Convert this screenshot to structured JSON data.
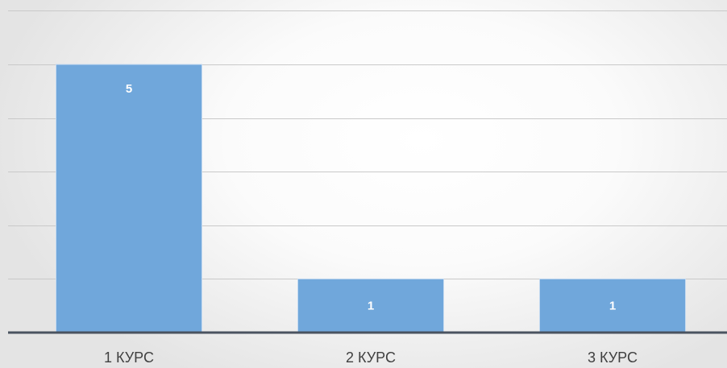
{
  "chart_data": {
    "type": "bar",
    "title": "",
    "xlabel": "",
    "ylabel": "",
    "categories": [
      "1 КУРС",
      "2 КУРС",
      "3 КУРС"
    ],
    "values": [
      5,
      1,
      1
    ],
    "data_labels": [
      "5",
      "1",
      "1"
    ],
    "ylim": [
      0,
      6
    ],
    "gridlines": true,
    "y_tick_labels_visible": false,
    "legend": "none",
    "colors": {
      "bar": "#70a7db",
      "bar_border": "#c5daf0",
      "gridline": "#c9c9c9",
      "axis": "#4a5360",
      "data_label": "#ffffff",
      "category_label": "#404040"
    }
  }
}
